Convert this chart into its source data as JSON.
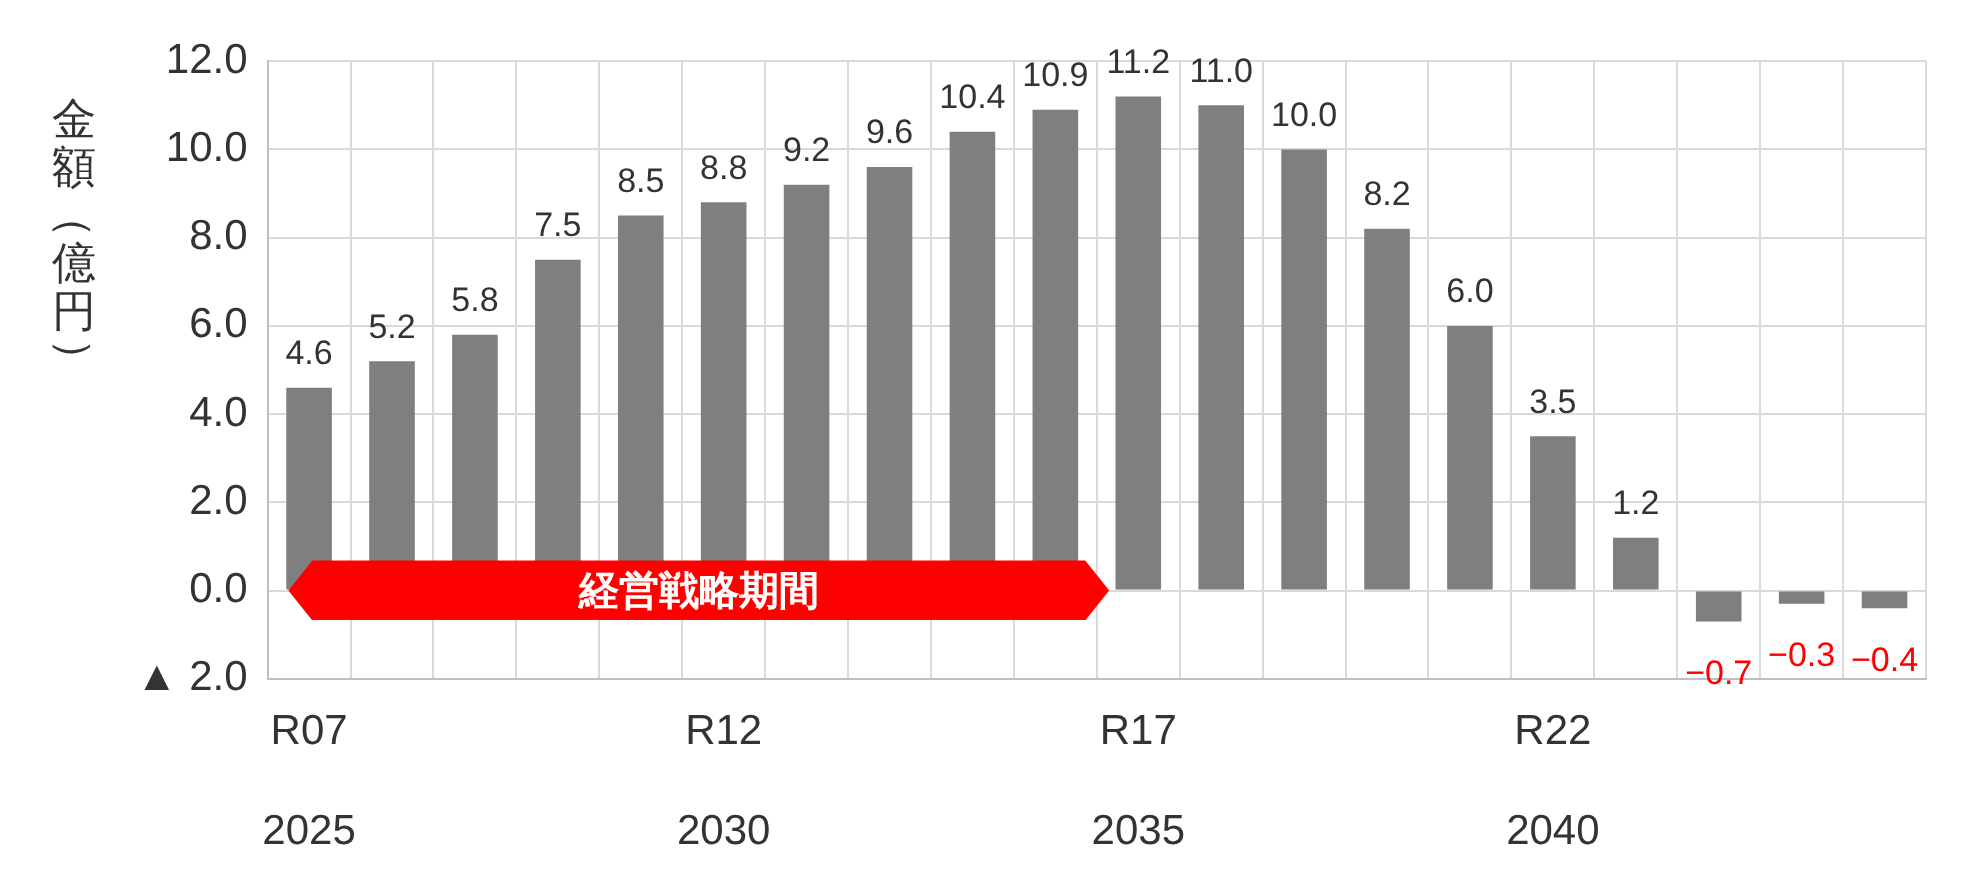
{
  "chart_data": {
    "type": "bar",
    "ylabel": "金額（億円）",
    "categories": [
      "R07\n2025",
      null,
      null,
      null,
      null,
      "R12\n2030",
      null,
      null,
      null,
      null,
      "R17\n2035",
      null,
      null,
      null,
      null,
      "R22\n2040",
      null,
      null,
      null,
      null
    ],
    "series": [
      {
        "color": "#7f7f7f",
        "values": [
          4.6,
          5.2,
          5.8,
          7.5,
          8.5,
          8.8,
          9.2,
          9.6,
          10.4,
          10.9,
          11.2,
          11.0,
          10.0,
          8.2,
          6.0,
          3.5,
          1.2,
          -0.7,
          -0.3,
          -0.4
        ],
        "value_labels": [
          "4.6",
          "5.2",
          "5.8",
          "7.5",
          "8.5",
          "8.8",
          "9.2",
          "9.6",
          "10.4",
          "10.9",
          "11.2",
          "11.0",
          "10.0",
          "8.2",
          "6.0",
          "3.5",
          "1.2",
          "−0.7",
          "−0.3",
          "−0.4"
        ]
      }
    ],
    "ylim": [
      -2,
      12
    ],
    "yticks": [
      {
        "value": -2,
        "label": "▲ 2.0"
      },
      {
        "value": 0,
        "label": "0.0"
      },
      {
        "value": 2,
        "label": "2.0"
      },
      {
        "value": 4,
        "label": "4.0"
      },
      {
        "value": 6,
        "label": "6.0"
      },
      {
        "value": 8,
        "label": "8.0"
      },
      {
        "value": 10,
        "label": "10.0"
      },
      {
        "value": 12,
        "label": "12.0"
      }
    ],
    "annotations": [
      "経営戦略期間"
    ],
    "grid": true,
    "legend": false
  }
}
